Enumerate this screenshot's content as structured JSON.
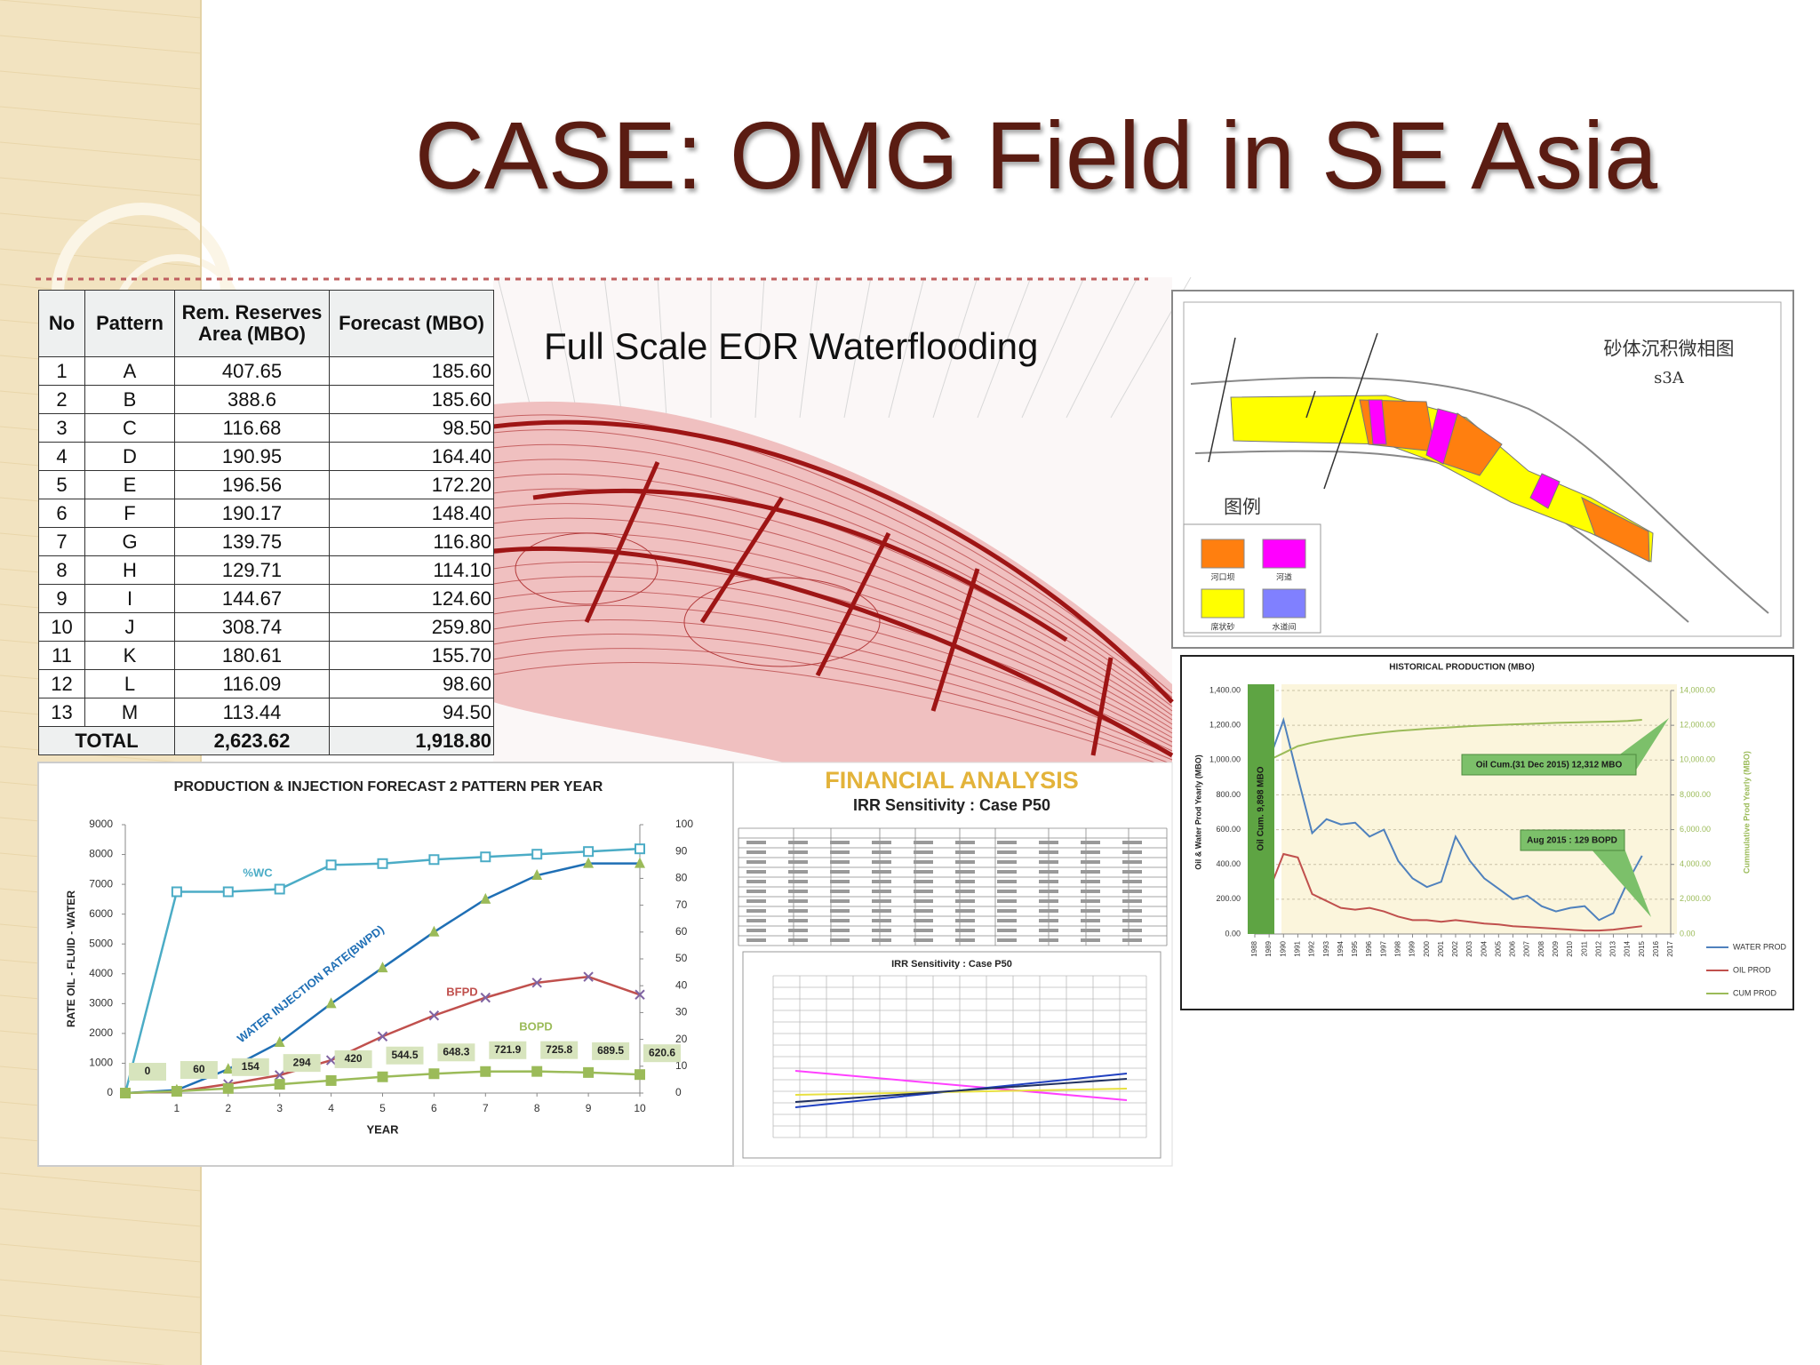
{
  "title": "CASE: OMG Field in SE Asia",
  "reserves_table": {
    "header": [
      "No",
      "Pattern",
      "Rem. Reserves Area (MBO)",
      "Forecast (MBO)"
    ],
    "rows": [
      [
        "1",
        "A",
        "407.65",
        "185.60"
      ],
      [
        "2",
        "B",
        "388.6",
        "185.60"
      ],
      [
        "3",
        "C",
        "116.68",
        "98.50"
      ],
      [
        "4",
        "D",
        "190.95",
        "164.40"
      ],
      [
        "5",
        "E",
        "196.56",
        "172.20"
      ],
      [
        "6",
        "F",
        "190.17",
        "148.40"
      ],
      [
        "7",
        "G",
        "139.75",
        "116.80"
      ],
      [
        "8",
        "H",
        "129.71",
        "114.10"
      ],
      [
        "9",
        "I",
        "144.67",
        "124.60"
      ],
      [
        "10",
        "J",
        "308.74",
        "259.80"
      ],
      [
        "11",
        "K",
        "180.61",
        "155.70"
      ],
      [
        "12",
        "L",
        "116.09",
        "98.60"
      ],
      [
        "13",
        "M",
        "113.44",
        "94.50"
      ]
    ],
    "total": [
      "TOTAL",
      "2,623.62",
      "1,918.80"
    ]
  },
  "map_caption": "Full Scale EOR Waterflooding",
  "facies_map": {
    "title": "砂体沉积微相图",
    "subtitle": "s3A",
    "legend_title": "图例",
    "legend": [
      "河口坝",
      "河道",
      "席状砂",
      "水道间"
    ]
  },
  "financial": {
    "title": "FINANCIAL ANALYSIS",
    "subtitle": "IRR Sensitivity : Case P50",
    "chart_title": "IRR Sensitivity : Case P50"
  },
  "chart_data": [
    {
      "type": "line",
      "title": "PRODUCTION & INJECTION  FORECAST 2 PATTERN PER YEAR",
      "x_label": "YEAR",
      "y_label": "RATE OIL - FLUID - WATER",
      "x": [
        0,
        1,
        2,
        3,
        4,
        5,
        6,
        7,
        8,
        9,
        10
      ],
      "xlim": [
        0,
        10
      ],
      "xticks": [
        1,
        2,
        3,
        4,
        5,
        6,
        7,
        8,
        9,
        10
      ],
      "ylim": [
        0,
        9000
      ],
      "yticks": [
        0,
        1000,
        2000,
        3000,
        4000,
        5000,
        6000,
        7000,
        8000,
        9000
      ],
      "y2lim": [
        0,
        100
      ],
      "y2ticks": [
        0,
        10,
        20,
        30,
        40,
        50,
        60,
        70,
        80,
        90,
        100
      ],
      "grid": false,
      "series": [
        {
          "name": "%WC",
          "color": "#4bacc6",
          "axis": "y2",
          "marker": "square",
          "values": [
            0,
            75,
            75,
            76,
            85,
            85.5,
            87,
            88,
            89,
            90,
            91
          ]
        },
        {
          "name": "WATER INJECTION RATE(BWPD)",
          "color": "#1f6fb5",
          "marker": "triangle",
          "marker_color": "#9bbb59",
          "values": [
            0,
            100,
            800,
            1700,
            3000,
            4200,
            5400,
            6500,
            7300,
            7700,
            7700
          ]
        },
        {
          "name": "BFPD",
          "color": "#c0504d",
          "marker": "x",
          "marker_color": "#8064a2",
          "values": [
            0,
            50,
            300,
            600,
            1100,
            1900,
            2600,
            3200,
            3700,
            3900,
            3300
          ]
        },
        {
          "name": "BOPD",
          "color": "#9bbb59",
          "marker": "square",
          "data_labels": true,
          "values": [
            0,
            60,
            154,
            294,
            420,
            544.5,
            648.3,
            721.9,
            725.8,
            689.5,
            620.6
          ]
        }
      ]
    },
    {
      "type": "line",
      "title": "HISTORICAL PRODUCTION (MBO)",
      "y_label": "Oil & Water Prod Yearly (MBO)",
      "y2_label": "Cummulative Prod Yearly (MBO)",
      "band_label": "Oil Cum. 9,898 MBO",
      "annotations": [
        "Oil Cum.(31 Dec 2015) 12,312 MBO",
        "Aug 2015 : 129 BOPD"
      ],
      "x": [
        1989,
        1990,
        1991,
        1992,
        1993,
        1994,
        1995,
        1996,
        1997,
        1998,
        1999,
        2000,
        2001,
        2002,
        2003,
        2004,
        2005,
        2006,
        2007,
        2008,
        2009,
        2010,
        2011,
        2012,
        2013,
        2014,
        2015
      ],
      "xlim": [
        1988,
        2017
      ],
      "xticks": [
        1988,
        1989,
        1990,
        1991,
        1992,
        1993,
        1994,
        1995,
        1996,
        1997,
        1998,
        1999,
        2000,
        2001,
        2002,
        2003,
        2004,
        2005,
        2006,
        2007,
        2008,
        2009,
        2010,
        2011,
        2012,
        2013,
        2014,
        2015,
        2016,
        2017
      ],
      "ylim": [
        0,
        1400
      ],
      "yticks": [
        {
          "value": 0,
          "label": "0.00"
        },
        {
          "value": 200,
          "label": "200.00"
        },
        {
          "value": 400,
          "label": "400.00"
        },
        {
          "value": 600,
          "label": "600.00"
        },
        {
          "value": 800,
          "label": "800.00"
        },
        {
          "value": 1000,
          "label": "1,000.00"
        },
        {
          "value": 1200,
          "label": "1,200.00"
        },
        {
          "value": 1400,
          "label": "1,400.00"
        }
      ],
      "y2lim": [
        0,
        14000
      ],
      "y2ticks": [
        {
          "value": 0,
          "label": "0.00"
        },
        {
          "value": 2000,
          "label": "2,000.00"
        },
        {
          "value": 4000,
          "label": "4,000.00"
        },
        {
          "value": 6000,
          "label": "6,000.00"
        },
        {
          "value": 8000,
          "label": "8,000.00"
        },
        {
          "value": 10000,
          "label": "10,000.00"
        },
        {
          "value": 12000,
          "label": "12,000.00"
        },
        {
          "value": 14000,
          "label": "14,000.00"
        }
      ],
      "grid": true,
      "series": [
        {
          "name": "WATER PROD",
          "color": "#4f81bd",
          "values": [
            1000,
            1230,
            900,
            580,
            660,
            630,
            640,
            560,
            600,
            420,
            320,
            270,
            300,
            560,
            420,
            320,
            260,
            200,
            220,
            160,
            130,
            150,
            160,
            80,
            120,
            300,
            450
          ]
        },
        {
          "name": "OIL PROD",
          "color": "#c0504d",
          "values": [
            250,
            460,
            440,
            230,
            190,
            150,
            140,
            150,
            130,
            100,
            80,
            80,
            70,
            80,
            70,
            60,
            55,
            45,
            40,
            35,
            30,
            25,
            20,
            20,
            25,
            35,
            45
          ]
        },
        {
          "name": "CUM PROD",
          "color": "#9bbb59",
          "axis": "y2",
          "values": [
            10000,
            10400,
            10800,
            11000,
            11150,
            11280,
            11400,
            11500,
            11600,
            11680,
            11740,
            11800,
            11850,
            11900,
            11950,
            11990,
            12020,
            12050,
            12080,
            12110,
            12140,
            12160,
            12180,
            12200,
            12220,
            12250,
            12312
          ]
        }
      ]
    }
  ]
}
